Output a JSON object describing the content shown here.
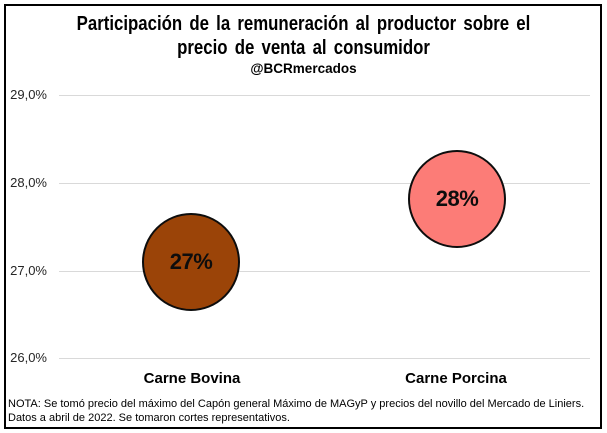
{
  "header": {
    "title_line1": "Participación de la remuneración al productor sobre el",
    "title_line2": "precio de venta al consumidor",
    "subtitle": "@BCRmercados"
  },
  "chart_data": {
    "type": "scatter",
    "subtype": "bubble",
    "title": "Participación de la remuneración al productor sobre el precio de venta al consumidor",
    "subtitle": "@BCRmercados",
    "categories": [
      "Carne Bovina",
      "Carne Porcina"
    ],
    "series": [
      {
        "name": "Carne Bovina",
        "value_pct": 27.1,
        "data_label": "27%",
        "bubble_color": "#9b4408"
      },
      {
        "name": "Carne Porcina",
        "value_pct": 27.8,
        "data_label": "28%",
        "bubble_color": "#fc7c77"
      }
    ],
    "ylabel": "",
    "xlabel": "",
    "ylim": [
      26.0,
      29.0
    ],
    "y_tick_labels": [
      "29,0%",
      "28,0%",
      "27,0%",
      "26,0%"
    ],
    "grid": "horizontal",
    "gridline_color": "#d9d9d9",
    "legend": "none",
    "bubble_outline_color": "#0d0d0d"
  },
  "footnote": {
    "text": "NOTA: Se tomó precio del máximo del Capón general Máximo de MAGyP y precios del novillo del Mercado de Liniers. Datos a abril de 2022. Se tomaron cortes representativos."
  }
}
